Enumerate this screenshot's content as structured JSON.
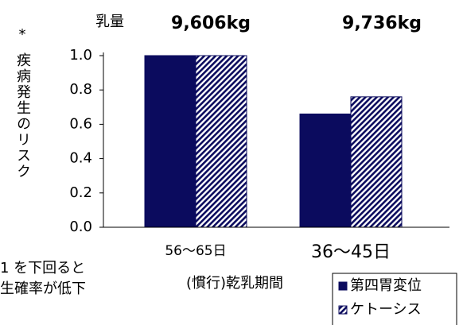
{
  "chart_data": {
    "type": "bar",
    "top_label": "乳量",
    "top_values": [
      "9,606kg",
      "9,736kg"
    ],
    "y_label": "疾病発生のリスク",
    "y_label_note": "*",
    "x_label": "(慣行)乾乳期間",
    "categories": [
      "56〜65日",
      "36〜45日"
    ],
    "category_colors": [
      "#000000",
      "#b01010"
    ],
    "series": [
      {
        "name": "第四胃変位",
        "color": "#0b0b5e",
        "pattern": "solid",
        "values": [
          1.0,
          0.66
        ]
      },
      {
        "name": "ケトーシス",
        "color": "#0b0b5e",
        "pattern": "hatch",
        "values": [
          1.0,
          0.76
        ]
      }
    ],
    "ylim": [
      0,
      1
    ],
    "yticks": [
      {
        "value": 0,
        "label": "0.0"
      },
      {
        "value": 0.2,
        "label": "0.2"
      },
      {
        "value": 0.4,
        "label": "0.4"
      },
      {
        "value": 0.6,
        "label": "0.6"
      },
      {
        "value": 0.8,
        "label": "0.8"
      },
      {
        "value": 1,
        "label": "1.0"
      }
    ],
    "notes": [
      "1 を下回ると",
      "生確率が低下"
    ]
  }
}
